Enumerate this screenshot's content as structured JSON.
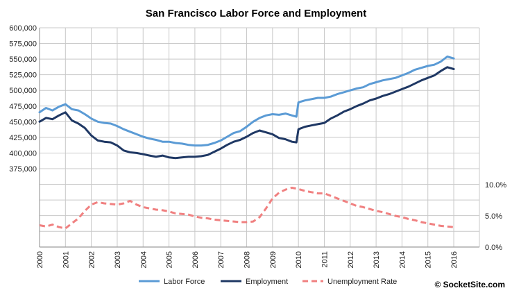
{
  "chart_data": {
    "type": "line",
    "title": "San Francisco Labor Force and Employment",
    "credit": "© SocketSite.com",
    "x_ticks": [
      "2000",
      "2001",
      "2002",
      "2003",
      "2004",
      "2005",
      "2006",
      "2007",
      "2008",
      "2009",
      "2010",
      "2011",
      "2012",
      "2013",
      "2014",
      "2015",
      "2016"
    ],
    "xlim": [
      2000,
      2016.99
    ],
    "left_axis": {
      "ticks": [
        "375,000",
        "400,000",
        "425,000",
        "450,000",
        "475,000",
        "500,000",
        "525,000",
        "550,000",
        "575,000",
        "600,000"
      ],
      "ylim": [
        375000,
        600000
      ]
    },
    "right_axis": {
      "ticks": [
        "0.0%",
        "5.0%",
        "10.0%"
      ],
      "ylim": [
        0,
        10
      ]
    },
    "grid": true,
    "legend_position": "bottom",
    "series": [
      {
        "name": "Labor Force",
        "color": "#5b9bd5",
        "style": "solid",
        "axis": "left",
        "x": [
          2000.0,
          2000.25,
          2000.5,
          2000.75,
          2001.0,
          2001.25,
          2001.5,
          2001.75,
          2002.0,
          2002.25,
          2002.5,
          2002.75,
          2003.0,
          2003.25,
          2003.5,
          2003.75,
          2004.0,
          2004.25,
          2004.5,
          2004.75,
          2005.0,
          2005.25,
          2005.5,
          2005.75,
          2006.0,
          2006.25,
          2006.5,
          2006.75,
          2007.0,
          2007.25,
          2007.5,
          2007.75,
          2008.0,
          2008.25,
          2008.5,
          2008.75,
          2009.0,
          2009.25,
          2009.5,
          2009.75,
          2009.92,
          2010.0,
          2010.25,
          2010.5,
          2010.75,
          2011.0,
          2011.25,
          2011.5,
          2011.75,
          2012.0,
          2012.25,
          2012.5,
          2012.75,
          2013.0,
          2013.25,
          2013.5,
          2013.75,
          2014.0,
          2014.25,
          2014.5,
          2014.75,
          2015.0,
          2015.25,
          2015.5,
          2015.75,
          2016.0
        ],
        "values": [
          465000,
          472000,
          468000,
          474000,
          478000,
          470000,
          468000,
          462000,
          455000,
          450000,
          448000,
          447000,
          443000,
          438000,
          434000,
          430000,
          426000,
          423000,
          421000,
          418000,
          418000,
          416000,
          415000,
          413000,
          412000,
          412000,
          413000,
          416000,
          420000,
          426000,
          432000,
          435000,
          442000,
          450000,
          456000,
          460000,
          462000,
          461000,
          463000,
          460000,
          458000,
          481000,
          484000,
          486000,
          488000,
          488000,
          490000,
          494000,
          497000,
          500000,
          503000,
          505000,
          510000,
          513000,
          516000,
          518000,
          520000,
          524000,
          528000,
          533000,
          536000,
          539000,
          541000,
          546000,
          554000,
          551000
        ]
      },
      {
        "name": "Employment",
        "color": "#1f3864",
        "style": "solid",
        "axis": "left",
        "x": [
          2000.0,
          2000.25,
          2000.5,
          2000.75,
          2001.0,
          2001.25,
          2001.5,
          2001.75,
          2002.0,
          2002.25,
          2002.5,
          2002.75,
          2003.0,
          2003.25,
          2003.5,
          2003.75,
          2004.0,
          2004.25,
          2004.5,
          2004.75,
          2005.0,
          2005.25,
          2005.5,
          2005.75,
          2006.0,
          2006.25,
          2006.5,
          2006.75,
          2007.0,
          2007.25,
          2007.5,
          2007.75,
          2008.0,
          2008.25,
          2008.5,
          2008.75,
          2009.0,
          2009.25,
          2009.5,
          2009.75,
          2009.92,
          2010.0,
          2010.25,
          2010.5,
          2010.75,
          2011.0,
          2011.25,
          2011.5,
          2011.75,
          2012.0,
          2012.25,
          2012.5,
          2012.75,
          2013.0,
          2013.25,
          2013.5,
          2013.75,
          2014.0,
          2014.25,
          2014.5,
          2014.75,
          2015.0,
          2015.25,
          2015.5,
          2015.75,
          2016.0
        ],
        "values": [
          450000,
          456000,
          454000,
          460000,
          465000,
          452000,
          447000,
          440000,
          428000,
          420000,
          418000,
          417000,
          412000,
          404000,
          401000,
          400000,
          398000,
          396000,
          394000,
          396000,
          393000,
          392000,
          393000,
          394000,
          394000,
          395000,
          397000,
          402000,
          407000,
          413000,
          418000,
          421000,
          426000,
          432000,
          436000,
          433000,
          430000,
          424000,
          422000,
          418000,
          417000,
          438000,
          442000,
          444000,
          446000,
          448000,
          455000,
          460000,
          466000,
          470000,
          475000,
          479000,
          484000,
          487000,
          491000,
          494000,
          498000,
          502000,
          506000,
          511000,
          516000,
          520000,
          524000,
          531000,
          537000,
          534000
        ]
      },
      {
        "name": "Unemployment Rate",
        "color": "#f08080",
        "style": "dashed",
        "axis": "right",
        "x": [
          2000.0,
          2000.25,
          2000.5,
          2000.75,
          2001.0,
          2001.25,
          2001.5,
          2001.75,
          2002.0,
          2002.25,
          2002.5,
          2002.75,
          2003.0,
          2003.25,
          2003.5,
          2003.75,
          2004.0,
          2004.25,
          2004.5,
          2004.75,
          2005.0,
          2005.25,
          2005.5,
          2005.75,
          2006.0,
          2006.25,
          2006.5,
          2006.75,
          2007.0,
          2007.25,
          2007.5,
          2007.75,
          2008.0,
          2008.25,
          2008.5,
          2008.75,
          2009.0,
          2009.25,
          2009.5,
          2009.75,
          2010.0,
          2010.25,
          2010.5,
          2010.75,
          2011.0,
          2011.25,
          2011.5,
          2011.75,
          2012.0,
          2012.25,
          2012.5,
          2012.75,
          2013.0,
          2013.25,
          2013.5,
          2013.75,
          2014.0,
          2014.25,
          2014.5,
          2014.75,
          2015.0,
          2015.25,
          2015.5,
          2015.75,
          2016.0
        ],
        "values": [
          3.5,
          3.3,
          3.6,
          3.2,
          3.0,
          3.8,
          4.6,
          5.8,
          6.8,
          7.2,
          7.0,
          6.9,
          6.8,
          7.0,
          7.4,
          6.8,
          6.4,
          6.2,
          6.0,
          5.9,
          5.7,
          5.4,
          5.3,
          5.2,
          4.9,
          4.7,
          4.6,
          4.4,
          4.3,
          4.2,
          4.1,
          4.0,
          4.0,
          4.1,
          4.8,
          6.2,
          7.8,
          8.7,
          9.2,
          9.5,
          9.3,
          9.0,
          8.8,
          8.6,
          8.6,
          8.2,
          7.8,
          7.4,
          7.0,
          6.6,
          6.4,
          6.1,
          5.8,
          5.6,
          5.3,
          5.0,
          4.8,
          4.5,
          4.3,
          4.0,
          3.8,
          3.6,
          3.4,
          3.3,
          3.2
        ]
      }
    ]
  }
}
